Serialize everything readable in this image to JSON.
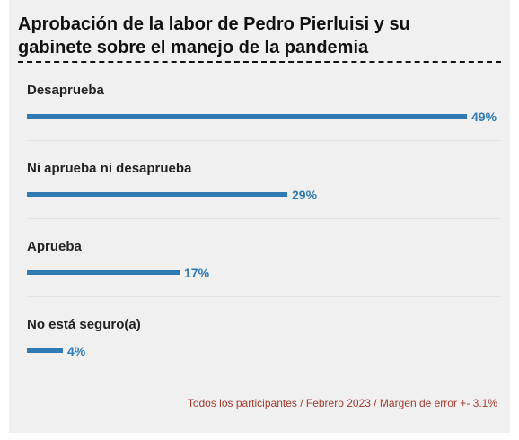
{
  "chart_data": {
    "type": "bar",
    "orientation": "horizontal",
    "title": "Aprobación de la labor de Pedro Pierluisi y su gabinete sobre el manejo de la pandemia",
    "categories": [
      "Desaprueba",
      "Ni aprueba ni desaprueba",
      "Aprueba",
      "No está seguro(a)"
    ],
    "values": [
      49,
      29,
      17,
      4
    ],
    "value_labels": [
      "49%",
      "29%",
      "17%",
      "4%"
    ],
    "unit": "%",
    "xlim": [
      0,
      49
    ],
    "grid": false,
    "legend": "none",
    "footnote": "Todos los participantes / Febrero 2023 / Margen de error +- 3.1%"
  },
  "colors": {
    "bar": "#2f7ab3",
    "footnote": "#a33a2e",
    "panel": "#f0f0f0"
  }
}
